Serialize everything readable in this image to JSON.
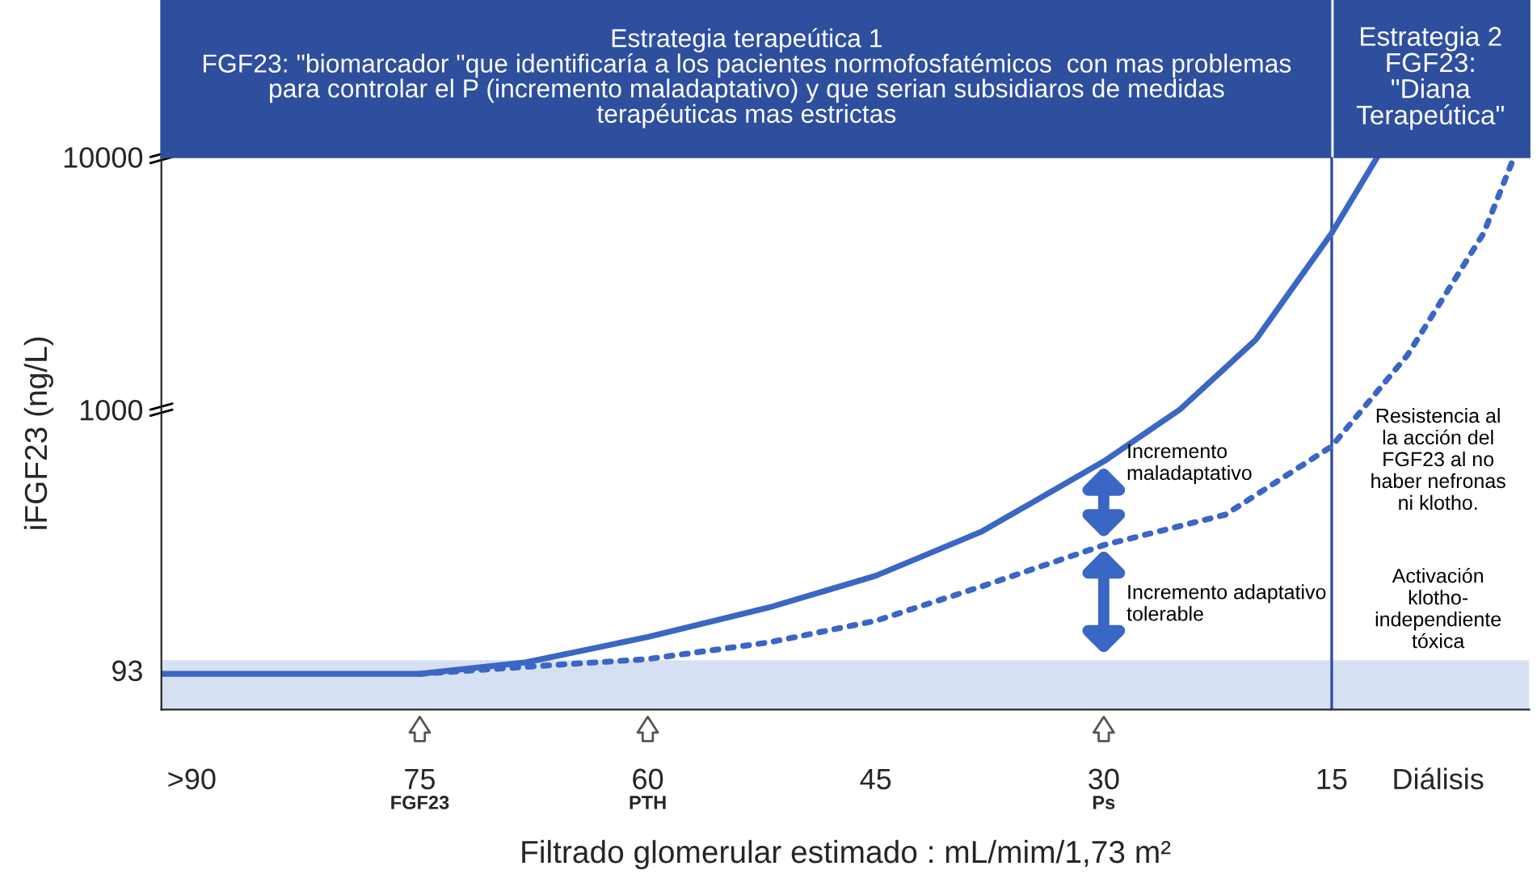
{
  "chart_data": {
    "type": "line",
    "title": "Estrategia terapeútica 1\nFGF23: \"biomarcador \"que identificaría a los pacientes normofosfatémicos  con mas problemas\npara controlar el P (incremento maladaptativo) y que serian subsidiaros de medidas\nterapéuticas mas estrictas",
    "xlabel": "Filtrado glomerular estimado : mL/mim/1,73 m²",
    "ylabel": "iFGF23 (ng/L)",
    "log": "y",
    "ylim": [
      65,
      10000
    ],
    "yticks": [
      93,
      1000,
      10000
    ],
    "xlim": [
      92,
      2
    ],
    "xticks": [
      {
        "value": 90,
        "label": ">90"
      },
      75,
      60,
      45,
      30,
      15,
      {
        "value": 8,
        "label": "Diálisis"
      }
    ],
    "series": [
      {
        "color": "#3a66c4",
        "line_style": "solid",
        "x": [
          92,
          85,
          75,
          68,
          60,
          52,
          45,
          38,
          30,
          25,
          20,
          15,
          12
        ],
        "values": [
          90,
          90,
          90,
          100,
          126,
          165,
          220,
          330,
          624,
          1000,
          1890,
          5000,
          10000
        ]
      },
      {
        "color": "#3a66c4",
        "line_style": "dotted",
        "x": [
          75,
          68,
          60,
          52,
          45,
          38,
          30,
          22,
          15,
          10,
          5,
          3
        ],
        "values": [
          90,
          96,
          103,
          120,
          146,
          200,
          291,
          384,
          716,
          1650,
          5000,
          10000
        ]
      }
    ],
    "bands": [
      {
        "axis": "y",
        "from": 65,
        "to": 102,
        "color": "#d6e0f3"
      }
    ],
    "ref_lines": [
      {
        "axis": "x",
        "value": 15,
        "color": "#2e4e9e"
      }
    ],
    "annotations": [
      "Estrategia 2\nFGF23:\n\"Diana\nTerapeútica\"",
      "FGF23",
      "PTH",
      "Ps",
      "Incremento\nmaladaptativo",
      "Incremento adaptativo\ntolerable",
      "Resistencia al\nla acción del\nFGF23 al no\nhaber nefronas\nni klotho.",
      "Activación\nklotho-\nindependiente\ntóxica"
    ],
    "grid": false,
    "legend": false
  }
}
